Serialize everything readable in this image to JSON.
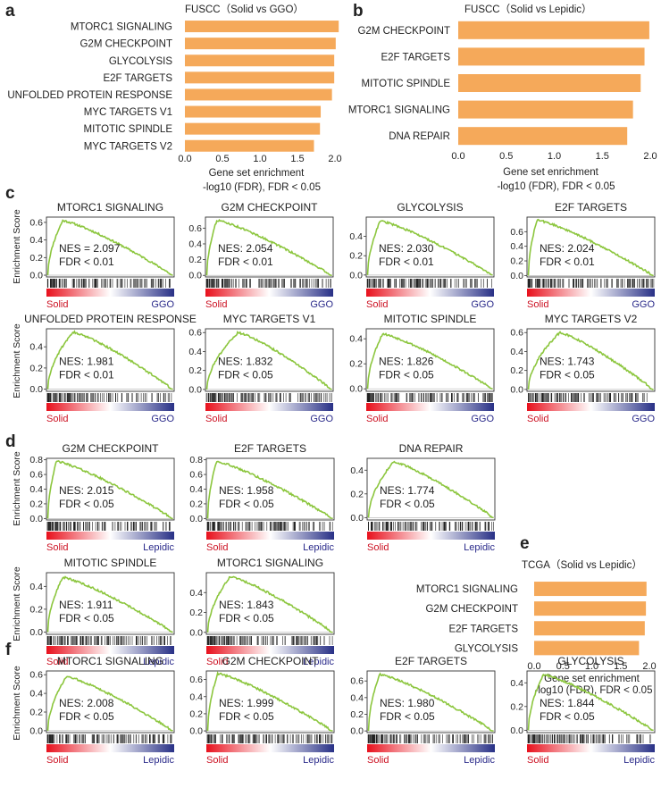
{
  "colors": {
    "bar": "#f5a95a",
    "curve": "#8cc63e",
    "solid_label": "#cc1122",
    "ref_label": "#2a2a8a",
    "gradient_start": "#e8101c",
    "gradient_mid": "#ffffff",
    "gradient_end": "#283086"
  },
  "labels": {
    "y_axis_title": "Enrichment Score",
    "x_title_line1": "Gene set enrichment",
    "x_title_line2": "-log10 (FDR), FDR < 0.05"
  },
  "chart_data": [
    {
      "id": "a",
      "type": "bar",
      "orientation": "horizontal",
      "panel_letter": "a",
      "title": "FUSCC（Solid vs GGO）",
      "xlabel": "Gene set enrichment",
      "xlabel2": "-log10 (FDR), FDR < 0.05",
      "xlim": [
        0,
        2.05
      ],
      "xticks": [
        "0.0",
        "0.5",
        "1.0",
        "1.5",
        "2.0"
      ],
      "categories": [
        "MTORC1 SIGNALING",
        "G2M CHECKPOINT",
        "GLYCOLYSIS",
        "E2F TARGETS",
        "UNFOLDED PROTEIN RESPONSE",
        "MYC TARGETS V1",
        "MITOTIC SPINDLE",
        "MYC TARGETS V2"
      ],
      "values": [
        2.05,
        2.01,
        1.99,
        1.99,
        1.96,
        1.81,
        1.8,
        1.72
      ]
    },
    {
      "id": "b",
      "type": "bar",
      "orientation": "horizontal",
      "panel_letter": "b",
      "title": "FUSCC（Solid vs Lepidic）",
      "xlabel": "Gene set enrichment",
      "xlabel2": "-log10 (FDR), FDR < 0.05",
      "xlim": [
        0,
        2.0
      ],
      "xticks": [
        "0.0",
        "0.5",
        "1.0",
        "1.5",
        "2.0"
      ],
      "categories": [
        "G2M CHECKPOINT",
        "E2F TARGETS",
        "MITOTIC SPINDLE",
        "MTORC1 SIGNALING",
        "DNA REPAIR"
      ],
      "values": [
        1.99,
        1.94,
        1.9,
        1.82,
        1.76
      ]
    },
    {
      "id": "e",
      "type": "bar",
      "orientation": "horizontal",
      "panel_letter": "e",
      "title": "TCGA（Solid vs Lepidic）",
      "xlabel": "Gene set enrichment",
      "xlabel2": "-log10 (FDR), FDR < 0.05",
      "xlim": [
        0,
        1.95
      ],
      "xticks": [
        "0.0",
        "0.5",
        "1.0",
        "1.5",
        "2.0"
      ],
      "categories": [
        "MTORC1 SIGNALING",
        "G2M CHECKPOINT",
        "E2F TARGETS",
        "GLYCOLYSIS"
      ],
      "values": [
        1.95,
        1.94,
        1.92,
        1.82
      ]
    },
    {
      "id": "c",
      "type": "line",
      "subtype": "gsea",
      "panel_letter": "c",
      "ylabel": "Enrichment Score",
      "left_label": "Solid",
      "right_label": "GGO",
      "plots": [
        {
          "title": "MTORC1 SIGNALING",
          "nes": "NES = 2.097",
          "fdr": "FDR < 0.01",
          "ylim": [
            -0.02,
            0.66
          ],
          "yticks": [
            "0.0",
            "0.2",
            "0.4",
            "0.6"
          ],
          "peak": 0.62,
          "peak_pos": 0.12
        },
        {
          "title": "G2M CHECKPOINT",
          "nes": "NES: 2.054",
          "fdr": "FDR < 0.01",
          "ylim": [
            -0.02,
            0.74
          ],
          "yticks": [
            "0.0",
            "0.2",
            "0.4",
            "0.6"
          ],
          "peak": 0.7,
          "peak_pos": 0.08
        },
        {
          "title": "GLYCOLYSIS",
          "nes": "NES: 2.030",
          "fdr": "FDR < 0.01",
          "ylim": [
            -0.02,
            0.6
          ],
          "yticks": [
            "0.0",
            "0.2",
            "0.4"
          ],
          "peak": 0.56,
          "peak_pos": 0.1
        },
        {
          "title": "E2F TARGETS",
          "nes": "NES: 2.024",
          "fdr": "FDR < 0.01",
          "ylim": [
            -0.02,
            0.8
          ],
          "yticks": [
            "0.0",
            "0.2",
            "0.4",
            "0.6"
          ],
          "peak": 0.76,
          "peak_pos": 0.07
        },
        {
          "title": "UNFOLDED PROTEIN RESPONSE",
          "nes": "NES: 1.981",
          "fdr": "FDR < 0.01",
          "ylim": [
            -0.02,
            0.57
          ],
          "yticks": [
            "0.0",
            "0.2",
            "0.4"
          ],
          "peak": 0.54,
          "peak_pos": 0.2
        },
        {
          "title": "MYC TARGETS V1",
          "nes": "NES: 1.832",
          "fdr": "FDR < 0.05",
          "ylim": [
            -0.02,
            0.64
          ],
          "yticks": [
            "0.0",
            "0.2",
            "0.4",
            "0.6"
          ],
          "peak": 0.6,
          "peak_pos": 0.25
        },
        {
          "title": "MITOTIC SPINDLE",
          "nes": "NES: 1.826",
          "fdr": "FDR < 0.05",
          "ylim": [
            -0.02,
            0.48
          ],
          "yticks": [
            "0.0",
            "0.2",
            "0.4"
          ],
          "peak": 0.44,
          "peak_pos": 0.12
        },
        {
          "title": "MYC TARGETS V2",
          "nes": "NES: 1.743",
          "fdr": "FDR < 0.05",
          "ylim": [
            -0.02,
            0.64
          ],
          "yticks": [
            "0.0",
            "0.2",
            "0.4",
            "0.6"
          ],
          "peak": 0.6,
          "peak_pos": 0.25
        }
      ]
    },
    {
      "id": "d",
      "type": "line",
      "subtype": "gsea",
      "panel_letter": "d",
      "ylabel": "Enrichment Score",
      "left_label": "Solid",
      "right_label": "Lepidic",
      "plots": [
        {
          "title": "G2M CHECKPOINT",
          "nes": "NES: 2.015",
          "fdr": "FDR < 0.05",
          "ylim": [
            -0.02,
            0.82
          ],
          "yticks": [
            "0.0",
            "0.2",
            "0.4",
            "0.6",
            "0.8"
          ],
          "peak": 0.78,
          "peak_pos": 0.07
        },
        {
          "title": "E2F TARGETS",
          "nes": "NES: 1.958",
          "fdr": "FDR < 0.05",
          "ylim": [
            -0.02,
            0.82
          ],
          "yticks": [
            "0.0",
            "0.2",
            "0.4",
            "0.6",
            "0.8"
          ],
          "peak": 0.78,
          "peak_pos": 0.07
        },
        {
          "title": "DNA REPAIR",
          "nes": "NES: 1.774",
          "fdr": "FDR < 0.05",
          "ylim": [
            -0.02,
            0.5
          ],
          "yticks": [
            "0.0",
            "0.2",
            "0.4"
          ],
          "peak": 0.47,
          "peak_pos": 0.2
        },
        {
          "title": "MITOTIC SPINDLE",
          "nes": "NES: 1.911",
          "fdr": "FDR < 0.05",
          "ylim": [
            -0.02,
            0.52
          ],
          "yticks": [
            "0.0",
            "0.2",
            "0.4"
          ],
          "peak": 0.48,
          "peak_pos": 0.12
        },
        {
          "title": "MTORC1 SIGNALING",
          "nes": "NES: 1.843",
          "fdr": "FDR < 0.05",
          "ylim": [
            -0.02,
            0.6
          ],
          "yticks": [
            "0.0",
            "0.2",
            "0.4"
          ],
          "peak": 0.56,
          "peak_pos": 0.18
        }
      ]
    },
    {
      "id": "f",
      "type": "line",
      "subtype": "gsea",
      "panel_letter": "f",
      "ylabel": "Enrichment Score",
      "left_label": "Solid",
      "right_label": "Lepidic",
      "plots": [
        {
          "title": "MTORC1 SIGNALING",
          "nes": "NES: 2.008",
          "fdr": "FDR < 0.05",
          "ylim": [
            -0.02,
            0.64
          ],
          "yticks": [
            "0.0",
            "0.2",
            "0.4",
            "0.6"
          ],
          "peak": 0.58,
          "peak_pos": 0.15
        },
        {
          "title": "G2M CHECKPOINT",
          "nes": "NES: 1.999",
          "fdr": "FDR < 0.05",
          "ylim": [
            -0.02,
            0.7
          ],
          "yticks": [
            "0.0",
            "0.2",
            "0.4",
            "0.6"
          ],
          "peak": 0.67,
          "peak_pos": 0.08
        },
        {
          "title": "E2F TARGETS",
          "nes": "NES: 1.980",
          "fdr": "FDR < 0.05",
          "ylim": [
            -0.02,
            0.72
          ],
          "yticks": [
            "0.0",
            "0.2",
            "0.4",
            "0.6"
          ],
          "peak": 0.68,
          "peak_pos": 0.09
        },
        {
          "title": "GLYCOLYSIS",
          "nes": "NES: 1.844",
          "fdr": "FDR < 0.05",
          "ylim": [
            -0.02,
            0.5
          ],
          "yticks": [
            "0.0",
            "0.2",
            "0.4"
          ],
          "peak": 0.47,
          "peak_pos": 0.12
        }
      ]
    }
  ]
}
